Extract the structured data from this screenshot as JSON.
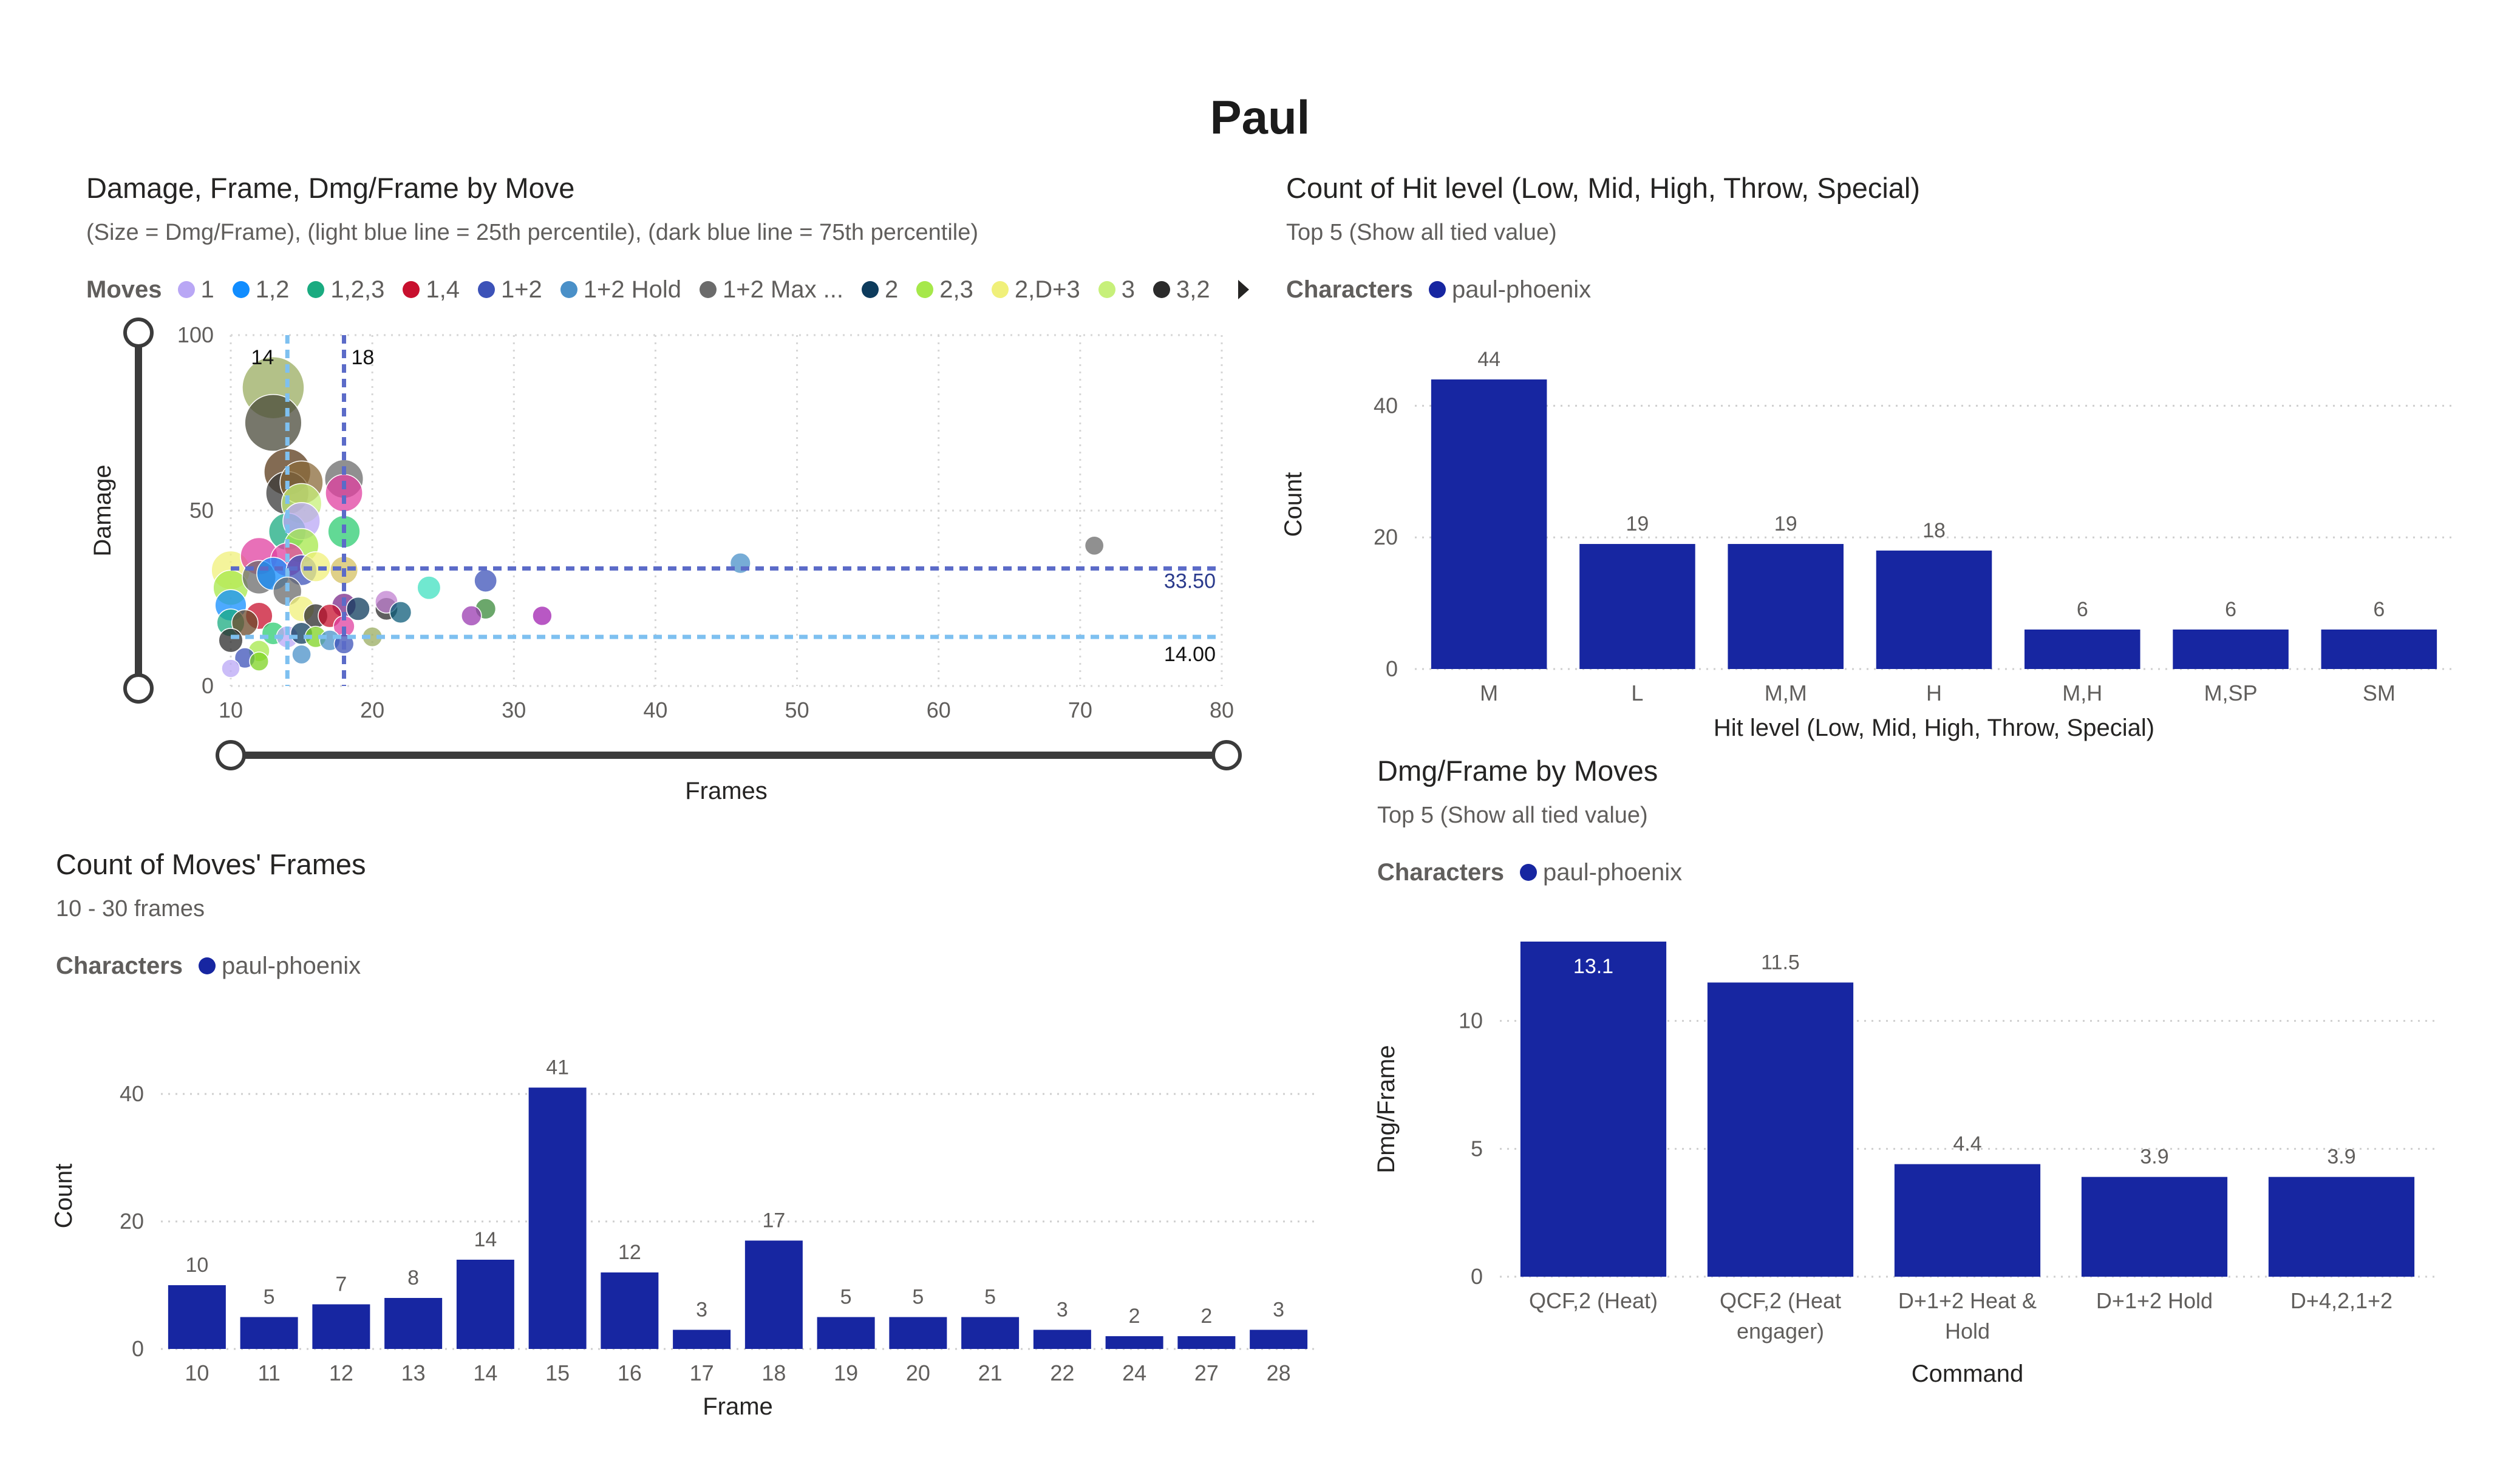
{
  "page": {
    "title": "Paul"
  },
  "charts": {
    "scatter": {
      "title": "Damage, Frame, Dmg/Frame by Move",
      "subtitle": "(Size = Dmg/Frame), (light blue line = 25th percentile), (dark blue line = 75th percentile)",
      "legend_title": "Moves",
      "legend_items": [
        {
          "label": "1",
          "color": "#b9a7f5"
        },
        {
          "label": "1,2",
          "color": "#118dff"
        },
        {
          "label": "1,2,3",
          "color": "#1aab80"
        },
        {
          "label": "1,4",
          "color": "#c8102e"
        },
        {
          "label": "1+2",
          "color": "#3c52b8"
        },
        {
          "label": "1+2 Hold",
          "color": "#4a90c8"
        },
        {
          "label": "1+2 Max ...",
          "color": "#6b6b6b"
        },
        {
          "label": "2",
          "color": "#0d3b5c"
        },
        {
          "label": "2,3",
          "color": "#a6e84a"
        },
        {
          "label": "2,D+3",
          "color": "#f0f07a"
        },
        {
          "label": "3",
          "color": "#c7f07a"
        },
        {
          "label": "3,2",
          "color": "#2b2b2b"
        }
      ]
    },
    "hitlevel": {
      "title": "Count of Hit level (Low, Mid, High, Throw, Special)",
      "subtitle": "Top 5 (Show all tied value)",
      "legend_title": "Characters",
      "legend_label": "paul-phoenix",
      "legend_color": "#1726a1"
    },
    "frames": {
      "title": "Count of Moves' Frames",
      "subtitle": "10 - 30 frames",
      "legend_title": "Characters",
      "legend_label": "paul-phoenix",
      "legend_color": "#1726a1"
    },
    "dmgframe": {
      "title": "Dmg/Frame by Moves",
      "subtitle": "Top 5 (Show all tied value)",
      "legend_title": "Characters",
      "legend_label": "paul-phoenix",
      "legend_color": "#1726a1"
    }
  },
  "chart_data": [
    {
      "type": "scatter",
      "title": "Damage, Frame, Dmg/Frame by Move",
      "xlabel": "Frames",
      "ylabel": "Damage",
      "xlim": [
        10,
        80
      ],
      "ylim": [
        0,
        100
      ],
      "xticks": [
        "10",
        "20",
        "30",
        "40",
        "50",
        "60",
        "70",
        "80"
      ],
      "yticks": [
        "0",
        "50",
        "100"
      ],
      "reference_lines": [
        {
          "axis": "x",
          "value": 14,
          "label": "14",
          "color": "#7ec0f0"
        },
        {
          "axis": "x",
          "value": 18,
          "label": "18",
          "color": "#5b6bc8"
        },
        {
          "axis": "y",
          "value": 33.5,
          "label": "33.50",
          "color": "#5b6bc8"
        },
        {
          "axis": "y",
          "value": 14,
          "label": "14.00",
          "color": "#7ec0f0"
        }
      ],
      "points": [
        {
          "x": 10,
          "y": 5,
          "s": 0.5,
          "color": "#b9a7f5"
        },
        {
          "x": 10,
          "y": 13,
          "s": 1.3,
          "color": "#2b2b2b"
        },
        {
          "x": 10,
          "y": 18,
          "s": 1.8,
          "color": "#1aab80"
        },
        {
          "x": 10,
          "y": 23,
          "s": 2.3,
          "color": "#118dff"
        },
        {
          "x": 10,
          "y": 28,
          "s": 2.8,
          "color": "#a6e84a"
        },
        {
          "x": 10,
          "y": 33,
          "s": 3.3,
          "color": "#f0f07a"
        },
        {
          "x": 11,
          "y": 8,
          "s": 0.8,
          "color": "#3c52b8"
        },
        {
          "x": 11,
          "y": 18,
          "s": 1.6,
          "color": "#6b4a2b"
        },
        {
          "x": 12,
          "y": 10,
          "s": 0.9,
          "color": "#a6e84a"
        },
        {
          "x": 12,
          "y": 20,
          "s": 1.7,
          "color": "#c8102e"
        },
        {
          "x": 12,
          "y": 31,
          "s": 2.6,
          "color": "#6b6b6b"
        },
        {
          "x": 12,
          "y": 37,
          "s": 3.1,
          "color": "#e040a0"
        },
        {
          "x": 12,
          "y": 7,
          "s": 0.6,
          "color": "#7ed321"
        },
        {
          "x": 13,
          "y": 85,
          "s": 6.5,
          "color": "#9aac60"
        },
        {
          "x": 13,
          "y": 75,
          "s": 5.8,
          "color": "#4a4a3a"
        },
        {
          "x": 13,
          "y": 15,
          "s": 1.1,
          "color": "#2ecc71"
        },
        {
          "x": 13,
          "y": 32,
          "s": 2.5,
          "color": "#118dff"
        },
        {
          "x": 14,
          "y": 61,
          "s": 4.4,
          "color": "#5a3a1a"
        },
        {
          "x": 14,
          "y": 55,
          "s": 3.9,
          "color": "#3a3a3a"
        },
        {
          "x": 14,
          "y": 44,
          "s": 3.1,
          "color": "#1aab80"
        },
        {
          "x": 14,
          "y": 36,
          "s": 2.6,
          "color": "#e040a0"
        },
        {
          "x": 14,
          "y": 27,
          "s": 1.9,
          "color": "#6b6b6b"
        },
        {
          "x": 14,
          "y": 14,
          "s": 1.0,
          "color": "#b9a7f5"
        },
        {
          "x": 15,
          "y": 58,
          "s": 3.9,
          "color": "#8a6a3a"
        },
        {
          "x": 15,
          "y": 52,
          "s": 3.5,
          "color": "#c7f07a"
        },
        {
          "x": 15,
          "y": 47,
          "s": 3.1,
          "color": "#b9a7f5"
        },
        {
          "x": 15,
          "y": 40,
          "s": 2.7,
          "color": "#a6e84a"
        },
        {
          "x": 15,
          "y": 33,
          "s": 2.2,
          "color": "#3c52b8"
        },
        {
          "x": 15,
          "y": 22,
          "s": 1.5,
          "color": "#f0f07a"
        },
        {
          "x": 15,
          "y": 15,
          "s": 1.0,
          "color": "#0d3b5c"
        },
        {
          "x": 15,
          "y": 9,
          "s": 0.6,
          "color": "#4a90c8"
        },
        {
          "x": 16,
          "y": 34,
          "s": 2.1,
          "color": "#f0f07a"
        },
        {
          "x": 16,
          "y": 20,
          "s": 1.3,
          "color": "#2b2b2b"
        },
        {
          "x": 16,
          "y": 14,
          "s": 0.9,
          "color": "#7ed321"
        },
        {
          "x": 17,
          "y": 20,
          "s": 1.2,
          "color": "#c8102e"
        },
        {
          "x": 17,
          "y": 13,
          "s": 0.8,
          "color": "#4a90c8"
        },
        {
          "x": 18,
          "y": 59,
          "s": 3.3,
          "color": "#6b6b6b"
        },
        {
          "x": 18,
          "y": 55,
          "s": 3.1,
          "color": "#e040a0"
        },
        {
          "x": 18,
          "y": 44,
          "s": 2.4,
          "color": "#2ecc71"
        },
        {
          "x": 18,
          "y": 33,
          "s": 1.8,
          "color": "#d4c060"
        },
        {
          "x": 18,
          "y": 23,
          "s": 1.3,
          "color": "#7a2a8a"
        },
        {
          "x": 18,
          "y": 17,
          "s": 0.9,
          "color": "#e040a0"
        },
        {
          "x": 18,
          "y": 12,
          "s": 0.7,
          "color": "#3c52b8"
        },
        {
          "x": 19,
          "y": 22,
          "s": 1.2,
          "color": "#0d3b5c"
        },
        {
          "x": 20,
          "y": 14,
          "s": 0.7,
          "color": "#9aac60"
        },
        {
          "x": 21,
          "y": 22,
          "s": 1.1,
          "color": "#2b2b2b"
        },
        {
          "x": 21,
          "y": 24,
          "s": 1.1,
          "color": "#c080d0"
        },
        {
          "x": 22,
          "y": 21,
          "s": 0.95,
          "color": "#0d5c7a"
        },
        {
          "x": 24,
          "y": 28,
          "s": 1.2,
          "color": "#40e0c0"
        },
        {
          "x": 27,
          "y": 20,
          "s": 0.75,
          "color": "#9a3ab0"
        },
        {
          "x": 28,
          "y": 30,
          "s": 1.1,
          "color": "#3c52b8"
        },
        {
          "x": 28,
          "y": 22,
          "s": 0.8,
          "color": "#3a8a3a"
        },
        {
          "x": 32,
          "y": 20,
          "s": 0.65,
          "color": "#a020b0"
        },
        {
          "x": 46,
          "y": 35,
          "s": 0.8,
          "color": "#4a90c8"
        },
        {
          "x": 71,
          "y": 40,
          "s": 0.6,
          "color": "#6b6b6b"
        }
      ]
    },
    {
      "type": "bar",
      "title": "Count of Hit level (Low, Mid, High, Throw, Special)",
      "xlabel": "Hit level (Low, Mid, High, Throw, Special)",
      "ylabel": "Count",
      "categories": [
        "M",
        "L",
        "M,M",
        "H",
        "M,H",
        "M,SP",
        "SM"
      ],
      "values": [
        44,
        19,
        19,
        18,
        6,
        6,
        6
      ],
      "ylim": [
        0,
        50
      ],
      "yticks": [
        "0",
        "20",
        "40"
      ],
      "color": "#1726a1"
    },
    {
      "type": "bar",
      "title": "Count of Moves' Frames",
      "xlabel": "Frame",
      "ylabel": "Count",
      "categories": [
        "10",
        "11",
        "12",
        "13",
        "14",
        "15",
        "16",
        "17",
        "18",
        "19",
        "20",
        "21",
        "22",
        "24",
        "27",
        "28"
      ],
      "values": [
        10,
        5,
        7,
        8,
        14,
        41,
        12,
        3,
        17,
        5,
        5,
        5,
        3,
        2,
        2,
        3
      ],
      "ylim": [
        0,
        48
      ],
      "yticks": [
        "0",
        "20",
        "40"
      ],
      "color": "#1726a1"
    },
    {
      "type": "bar",
      "title": "Dmg/Frame by Moves",
      "xlabel": "Command",
      "ylabel": "Dmg/Frame",
      "categories": [
        "QCF,2 (Heat)",
        "QCF,2 (Heat engager)",
        "D+1+2 Heat & Hold",
        "D+1+2 Hold",
        "D+4,2,1+2"
      ],
      "values": [
        13.1,
        11.5,
        4.4,
        3.9,
        3.9
      ],
      "ylim": [
        0,
        13.1
      ],
      "yticks": [
        "0",
        "5",
        "10"
      ],
      "color": "#1726a1"
    }
  ]
}
